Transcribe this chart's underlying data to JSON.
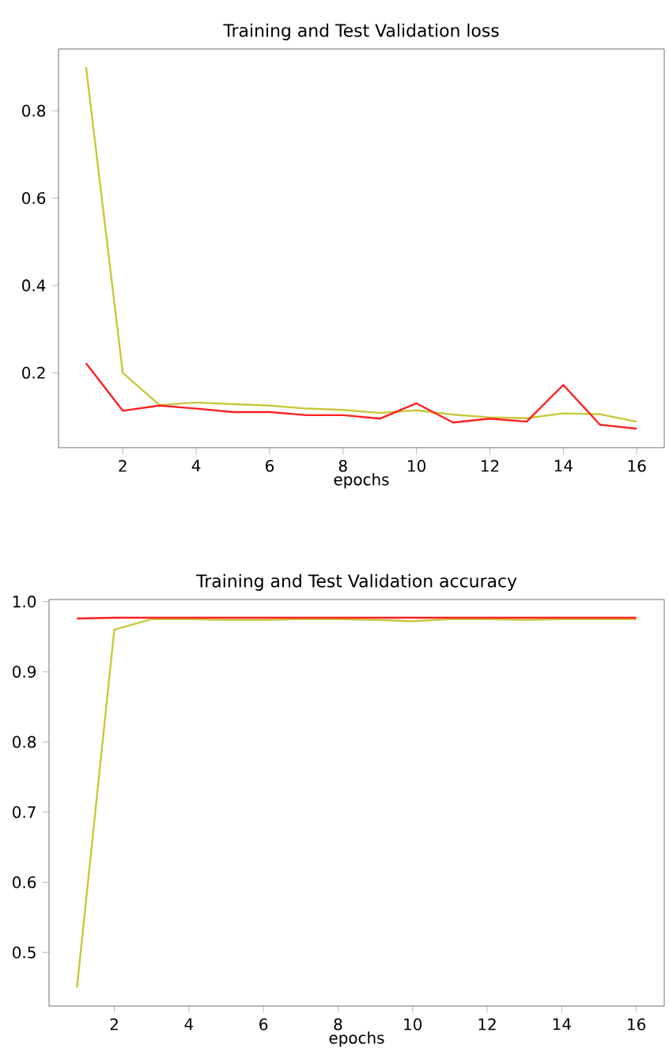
{
  "chart_data": [
    {
      "type": "line",
      "title": "Training and Test Validation loss",
      "xlabel": "epochs",
      "x": [
        1,
        2,
        3,
        4,
        5,
        6,
        7,
        8,
        9,
        10,
        11,
        12,
        13,
        14,
        15,
        16
      ],
      "series": [
        {
          "color": "#c8c83c",
          "values": [
            0.9,
            0.2,
            0.126,
            0.132,
            0.128,
            0.125,
            0.118,
            0.115,
            0.108,
            0.114,
            0.104,
            0.098,
            0.096,
            0.107,
            0.105,
            0.088
          ]
        },
        {
          "color": "#ff2020",
          "values": [
            0.222,
            0.113,
            0.125,
            0.118,
            0.11,
            0.11,
            0.103,
            0.103,
            0.095,
            0.13,
            0.086,
            0.095,
            0.088,
            0.172,
            0.081,
            0.072
          ]
        }
      ],
      "xlim": [
        0.25,
        16.75
      ],
      "ylim": [
        0.0285,
        0.9415
      ],
      "xticks": [
        2,
        4,
        6,
        8,
        10,
        12,
        14,
        16
      ],
      "yticks": [
        0.2,
        0.4,
        0.6,
        0.8
      ]
    },
    {
      "type": "line",
      "title": "Training and Test Validation accuracy",
      "xlabel": "epochs",
      "x": [
        1,
        2,
        3,
        4,
        5,
        6,
        7,
        8,
        9,
        10,
        11,
        12,
        13,
        14,
        15,
        16
      ],
      "series": [
        {
          "color": "#c8c83c",
          "values": [
            0.45,
            0.96,
            0.975,
            0.975,
            0.974,
            0.974,
            0.975,
            0.975,
            0.974,
            0.972,
            0.975,
            0.975,
            0.974,
            0.975,
            0.975,
            0.975
          ]
        },
        {
          "color": "#ff2020",
          "values": [
            0.976,
            0.977,
            0.977,
            0.977,
            0.977,
            0.977,
            0.977,
            0.977,
            0.977,
            0.977,
            0.977,
            0.977,
            0.977,
            0.977,
            0.977,
            0.977
          ]
        }
      ],
      "xlim": [
        0.25,
        16.75
      ],
      "ylim": [
        0.4236,
        1.003
      ],
      "xticks": [
        2,
        4,
        6,
        8,
        10,
        12,
        14,
        16
      ],
      "yticks": [
        0.5,
        0.6,
        0.7,
        0.8,
        0.9,
        {
          "value": 1.0,
          "label": "1.0"
        }
      ]
    }
  ]
}
